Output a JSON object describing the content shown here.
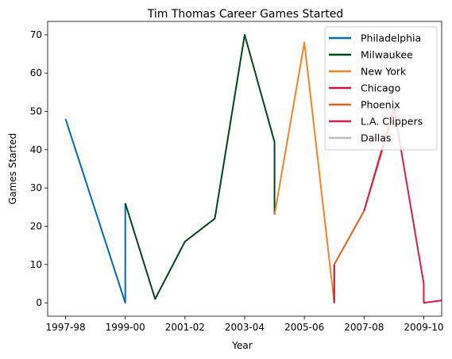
{
  "chart_data": {
    "type": "line",
    "title": "Tim Thomas  Career Games Started",
    "xlabel": "Year",
    "ylabel": "Games Started",
    "x_tick_labels": [
      "1997-98",
      "1999-00",
      "2001-02",
      "2003-04",
      "2005-06",
      "2007-08",
      "2009-10"
    ],
    "x_tick_values": [
      0,
      2,
      4,
      6,
      8,
      10,
      12
    ],
    "y_ticks": [
      0,
      10,
      20,
      30,
      40,
      50,
      60,
      70
    ],
    "xlim": [
      -0.6,
      12.6
    ],
    "ylim": [
      -3.5,
      73.5
    ],
    "legend": "upper right",
    "grid": false,
    "series": [
      {
        "name": "Philadelphia",
        "color": "#006bb6",
        "x": [
          0,
          2,
          2
        ],
        "y": [
          48,
          0,
          26
        ]
      },
      {
        "name": "Milwaukee",
        "color": "#00471b",
        "x": [
          2,
          3,
          4,
          5,
          6,
          7,
          7
        ],
        "y": [
          26,
          1,
          16,
          22,
          70,
          42,
          23
        ]
      },
      {
        "name": "New York",
        "color": "#f58426",
        "x": [
          7,
          8,
          9,
          9
        ],
        "y": [
          23,
          68,
          0,
          10
        ]
      },
      {
        "name": "Chicago",
        "color": "#ce1141",
        "x": [
          9,
          9
        ],
        "y": [
          10,
          0
        ]
      },
      {
        "name": "Phoenix",
        "color": "#e56020",
        "x": [
          9,
          10,
          11
        ],
        "y": [
          10,
          24,
          50
        ]
      },
      {
        "name": "L.A. Clippers",
        "color": "#dc1d4a",
        "x": [
          10,
          11,
          12,
          12,
          13
        ],
        "y": [
          24,
          51,
          5,
          0,
          1
        ]
      },
      {
        "name": "Dallas",
        "color": "#bbbbbb",
        "x": [],
        "y": []
      }
    ]
  }
}
